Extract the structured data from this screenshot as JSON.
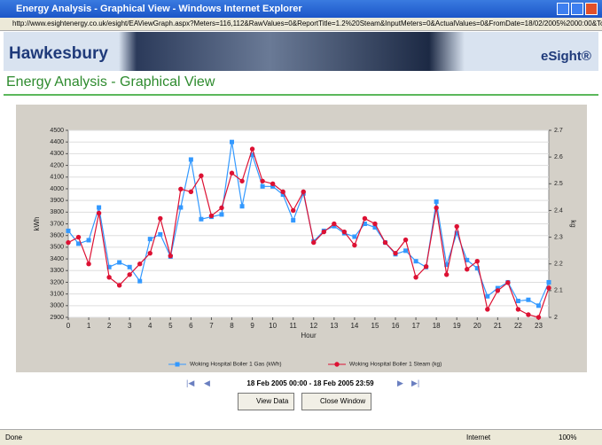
{
  "window": {
    "title": "Energy Analysis - Graphical View - Windows Internet Explorer",
    "url": "http://www.esightenergy.co.uk/esight/EAViewGraph.aspx?Meters=116,112&RawValues=0&ReportTitle=1.2%20Steam&InputMeters=0&ActualValues=0&FromDate=18/02/2005%2000:00&ToDate",
    "status": "Done",
    "zone": "Internet",
    "zoom": "100%"
  },
  "page": {
    "brand": "Hawkesbury",
    "product": "eSight®",
    "heading": "Energy Analysis - Graphical View",
    "date_range": "18 Feb 2005 00:00 - 18 Feb 2005 23:59",
    "buttons": [
      "View Data",
      "Close Window"
    ]
  },
  "chart_data": {
    "type": "line",
    "x_label": "Hour",
    "y_label": "kWh",
    "y2_label": "kg",
    "x": [
      0,
      0.5,
      1,
      1.5,
      2,
      2.5,
      3,
      3.5,
      4,
      4.5,
      5,
      5.5,
      6,
      6.5,
      7,
      7.5,
      8,
      8.5,
      9,
      9.5,
      10,
      10.5,
      11,
      11.5,
      12,
      12.5,
      13,
      13.5,
      14,
      14.5,
      15,
      15.5,
      16,
      16.5,
      17,
      17.5,
      18,
      18.5,
      19,
      19.5,
      20,
      20.5,
      21,
      21.5,
      22,
      22.5,
      23,
      23.5
    ],
    "xlim": [
      0,
      23.5
    ],
    "xticks": [
      0,
      1,
      2,
      3,
      4,
      5,
      6,
      7,
      8,
      9,
      10,
      11,
      12,
      13,
      14,
      15,
      16,
      17,
      18,
      19,
      20,
      21,
      22,
      23
    ],
    "ylim": [
      2900,
      4500
    ],
    "yticks": [
      2900,
      3000,
      3100,
      3200,
      3300,
      3400,
      3500,
      3600,
      3700,
      3800,
      3900,
      4000,
      4100,
      4200,
      4300,
      4400,
      4500
    ],
    "y2lim": [
      2,
      2.7
    ],
    "y2ticks": [
      2,
      2.1,
      2.2,
      2.3,
      2.4,
      2.5,
      2.6,
      2.7
    ],
    "grid": true,
    "series": [
      {
        "name": "Woking Hospital Boiler 1 Gas (kWh)",
        "color": "#3399ff",
        "marker": "square",
        "values": [
          3640,
          3530,
          3560,
          3840,
          3330,
          3370,
          3330,
          3210,
          3570,
          3610,
          3420,
          3840,
          4250,
          3740,
          3760,
          3780,
          4400,
          3850,
          4290,
          4020,
          4020,
          3950,
          3730,
          3960,
          3550,
          3640,
          3680,
          3620,
          3590,
          3700,
          3670,
          3540,
          3440,
          3470,
          3380,
          3330,
          3890,
          3350,
          3620,
          3390,
          3320,
          3080,
          3150,
          3200,
          3040,
          3050,
          3000,
          3200
        ]
      },
      {
        "name": "Woking Hospital Boiler 1 Steam (kg)",
        "color": "#dd1133",
        "marker": "circle",
        "axis": "y2",
        "values": [
          2.28,
          2.3,
          2.2,
          2.39,
          2.15,
          2.12,
          2.16,
          2.2,
          2.24,
          2.37,
          2.23,
          2.48,
          2.47,
          2.53,
          2.38,
          2.41,
          2.54,
          2.51,
          2.63,
          2.51,
          2.5,
          2.47,
          2.4,
          2.47,
          2.28,
          2.32,
          2.35,
          2.32,
          2.27,
          2.37,
          2.35,
          2.28,
          2.24,
          2.29,
          2.15,
          2.19,
          2.41,
          2.16,
          2.34,
          2.18,
          2.21,
          2.03,
          2.1,
          2.13,
          2.03,
          2.01,
          2.0,
          2.11
        ]
      }
    ]
  }
}
